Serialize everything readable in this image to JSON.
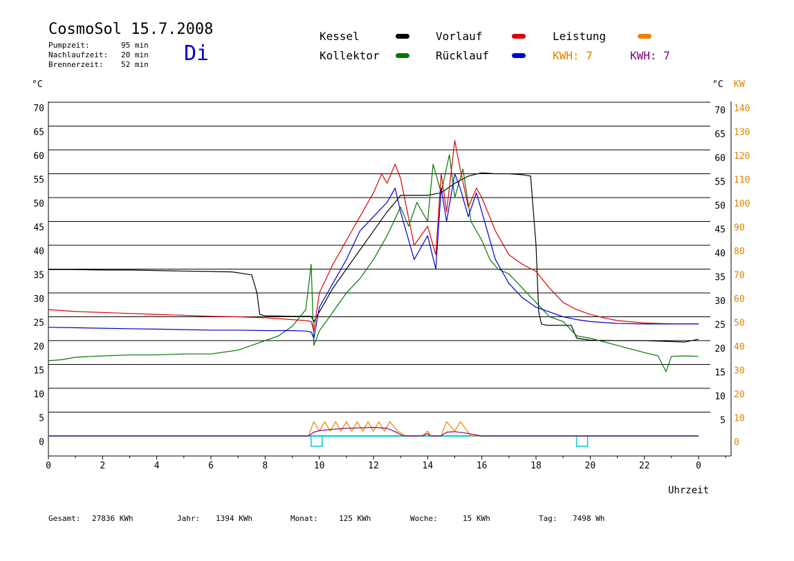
{
  "header": {
    "title": "CosmoSol 15.7.2008",
    "day": "Di",
    "pumpzeit_label": "Pumpzeit:",
    "pumpzeit_value": "95 min",
    "nachlaufzeit_label": "Nachlaufzeit:",
    "nachlaufzeit_value": "20 min",
    "brennerzeit_label": "Brennerzeit:",
    "brennerzeit_value": "52 min"
  },
  "legend": {
    "kessel": "Kessel",
    "kollektor": "Kollektor",
    "vorlauf": "Vorlauf",
    "ruecklauf": "Rücklauf",
    "leistung": "Leistung",
    "kwh1": "KWH: 7",
    "kwh2": "KWH: 7"
  },
  "footer": {
    "gesamt_label": "Gesamt:",
    "gesamt_value": "27836 KWh",
    "jahr_label": "Jahr:",
    "jahr_value": "1394 KWh",
    "monat_label": "Monat:",
    "monat_value": "125 KWh",
    "woche_label": "Woche:",
    "woche_value": "15 KWh",
    "tag_label": "Tag:",
    "tag_value": "7498 Wh"
  },
  "colors": {
    "kessel": "#000000",
    "kollektor": "#007700",
    "vorlauf": "#dd0000",
    "ruecklauf": "#0000cc",
    "leistung": "#f08000",
    "kwh2": "#800080",
    "baseline": "#00cccc"
  },
  "chart_data": {
    "type": "line",
    "xlabel": "Uhrzeit",
    "ylabel_left": "°C",
    "ylabel_right": "°C",
    "ylabel_right2": "KW",
    "x_ticks": [
      "0",
      "2",
      "4",
      "6",
      "8",
      "10",
      "12",
      "14",
      "16",
      "18",
      "20",
      "22",
      "0"
    ],
    "xlim": [
      0,
      24
    ],
    "ylim": [
      0,
      70
    ],
    "y_ticks_left": [
      0,
      5,
      10,
      15,
      20,
      25,
      30,
      35,
      40,
      45,
      50,
      55,
      60,
      65,
      70
    ],
    "y_ticks_right": [
      5,
      10,
      15,
      20,
      25,
      30,
      35,
      40,
      45,
      50,
      55,
      60,
      65,
      70
    ],
    "y_ticks_kw": [
      0,
      10,
      20,
      30,
      40,
      50,
      60,
      70,
      80,
      90,
      100,
      110,
      120,
      130,
      140
    ],
    "grid": true,
    "series": [
      {
        "name": "Kessel",
        "color": "#000000",
        "x": [
          0,
          1,
          2,
          3,
          4,
          5,
          6,
          6.8,
          7.5,
          7.7,
          7.8,
          8,
          9,
          9.7,
          9.8,
          10,
          10.5,
          11,
          11.5,
          12,
          12.5,
          12.8,
          13,
          13.5,
          14,
          14.5,
          15,
          15.5,
          16,
          16.5,
          17,
          17.5,
          17.8,
          18,
          18.1,
          18.2,
          18.4,
          19,
          19.3,
          19.5,
          20,
          21,
          22,
          23,
          23.5,
          24
        ],
        "y": [
          34.9,
          34.9,
          34.8,
          34.8,
          34.7,
          34.6,
          34.5,
          34.4,
          33.8,
          30,
          25.5,
          25.2,
          25.1,
          25.1,
          24,
          26,
          31,
          35,
          39,
          43,
          47,
          49,
          50.5,
          50.5,
          50.5,
          51,
          53,
          54.5,
          55.2,
          55,
          55,
          54.8,
          54.5,
          40,
          26,
          23.5,
          23.2,
          23.2,
          23.2,
          20.5,
          20.1,
          20,
          20,
          19.8,
          19.7,
          20.3
        ]
      },
      {
        "name": "Kollektor",
        "color": "#007700",
        "x": [
          0,
          0.5,
          1,
          2,
          3,
          4,
          5,
          6,
          7,
          7.5,
          8,
          8.5,
          9,
          9.5,
          9.7,
          9.8,
          10,
          10.5,
          11,
          11.5,
          12,
          12.5,
          13,
          13.3,
          13.6,
          14,
          14.2,
          14.5,
          14.8,
          15,
          15.3,
          15.6,
          16,
          16.3,
          16.6,
          17,
          17.5,
          18,
          18.5,
          19,
          19.5,
          20,
          21,
          22,
          22.5,
          22.8,
          23,
          23.5,
          24
        ],
        "y": [
          15.8,
          16,
          16.5,
          16.8,
          17,
          17,
          17.2,
          17.2,
          18,
          19,
          20,
          21,
          23,
          26.5,
          36,
          19,
          22,
          26,
          30,
          33,
          37,
          42,
          48,
          44,
          49,
          45,
          57,
          51,
          59,
          50,
          56,
          45,
          41,
          37,
          35,
          34,
          31,
          28,
          25,
          24,
          21,
          20.5,
          19,
          17.5,
          16.8,
          13.5,
          16.7,
          16.8,
          16.7
        ]
      },
      {
        "name": "Vorlauf",
        "color": "#dd0000",
        "x": [
          0,
          1,
          2,
          3,
          4,
          5,
          6,
          7,
          8,
          9,
          9.5,
          9.7,
          9.8,
          10,
          10.5,
          11,
          11.5,
          12,
          12.3,
          12.5,
          12.8,
          13,
          13.5,
          14,
          14.3,
          14.5,
          14.7,
          15,
          15.2,
          15.5,
          15.8,
          16,
          16.5,
          17,
          17.5,
          18,
          18.5,
          19,
          19.5,
          20,
          20.5,
          21,
          22,
          23,
          24
        ],
        "y": [
          26.5,
          26.1,
          25.9,
          25.7,
          25.5,
          25.3,
          25.1,
          25,
          24.8,
          24.4,
          24.2,
          24,
          22,
          30,
          36,
          41,
          46,
          51,
          55,
          53,
          57,
          54,
          40,
          44,
          38,
          55,
          47,
          62,
          56,
          48,
          52,
          50,
          43,
          38,
          36,
          34.5,
          31,
          28,
          26.5,
          25.5,
          24.8,
          24.2,
          23.7,
          23.5,
          23.5
        ]
      },
      {
        "name": "Rücklauf",
        "color": "#0000cc",
        "x": [
          0,
          1,
          2,
          3,
          4,
          5,
          6,
          7,
          8,
          9,
          9.5,
          9.7,
          9.8,
          10,
          10.5,
          11,
          11.5,
          12,
          12.5,
          12.8,
          13,
          13.5,
          14,
          14.3,
          14.5,
          14.7,
          15,
          15.2,
          15.5,
          15.8,
          16,
          16.5,
          17,
          17.5,
          18,
          18.5,
          19,
          19.5,
          20,
          21,
          22,
          23,
          24
        ],
        "y": [
          22.8,
          22.7,
          22.6,
          22.5,
          22.4,
          22.3,
          22.2,
          22.2,
          22.1,
          22.1,
          22,
          21.8,
          20.5,
          27,
          32,
          37,
          43,
          46,
          49,
          52,
          47,
          37,
          42,
          35,
          52,
          45,
          55,
          52,
          46,
          51,
          47,
          37,
          32,
          29,
          27,
          26,
          25,
          24.4,
          24,
          23.6,
          23.5,
          23.5,
          23.5
        ]
      },
      {
        "name": "Leistung",
        "color": "#f08000",
        "x": [
          0,
          9.6,
          9.8,
          10,
          10.2,
          10.4,
          10.6,
          10.8,
          11,
          11.2,
          11.4,
          11.6,
          11.8,
          12,
          12.2,
          12.4,
          12.6,
          12.9,
          13.2,
          13.8,
          14,
          14.1,
          14.5,
          14.7,
          15,
          15.2,
          15.6,
          16,
          24
        ],
        "y": [
          0,
          0,
          3,
          1,
          3,
          1,
          3,
          1,
          3,
          1,
          3,
          1,
          3,
          1,
          3,
          1,
          3,
          1,
          0,
          0,
          1,
          0,
          0,
          3,
          1,
          3,
          0,
          0,
          0
        ]
      },
      {
        "name": "KWH2",
        "color": "#800080",
        "x": [
          0,
          9.6,
          9.8,
          10,
          10.5,
          11,
          11.5,
          12,
          12.5,
          12.8,
          13.1,
          13.8,
          14,
          14.1,
          14.5,
          14.7,
          15,
          15.3,
          15.6,
          16,
          24
        ],
        "y": [
          0,
          0,
          0.8,
          1.1,
          1.4,
          1.6,
          1.7,
          1.8,
          1.6,
          0.9,
          0,
          0,
          0.5,
          0,
          0,
          0.8,
          0.9,
          0.7,
          0.4,
          0,
          0
        ]
      }
    ],
    "markers": [
      {
        "x": 9.9,
        "label": ""
      },
      {
        "x": 19.7,
        "label": ""
      }
    ]
  }
}
